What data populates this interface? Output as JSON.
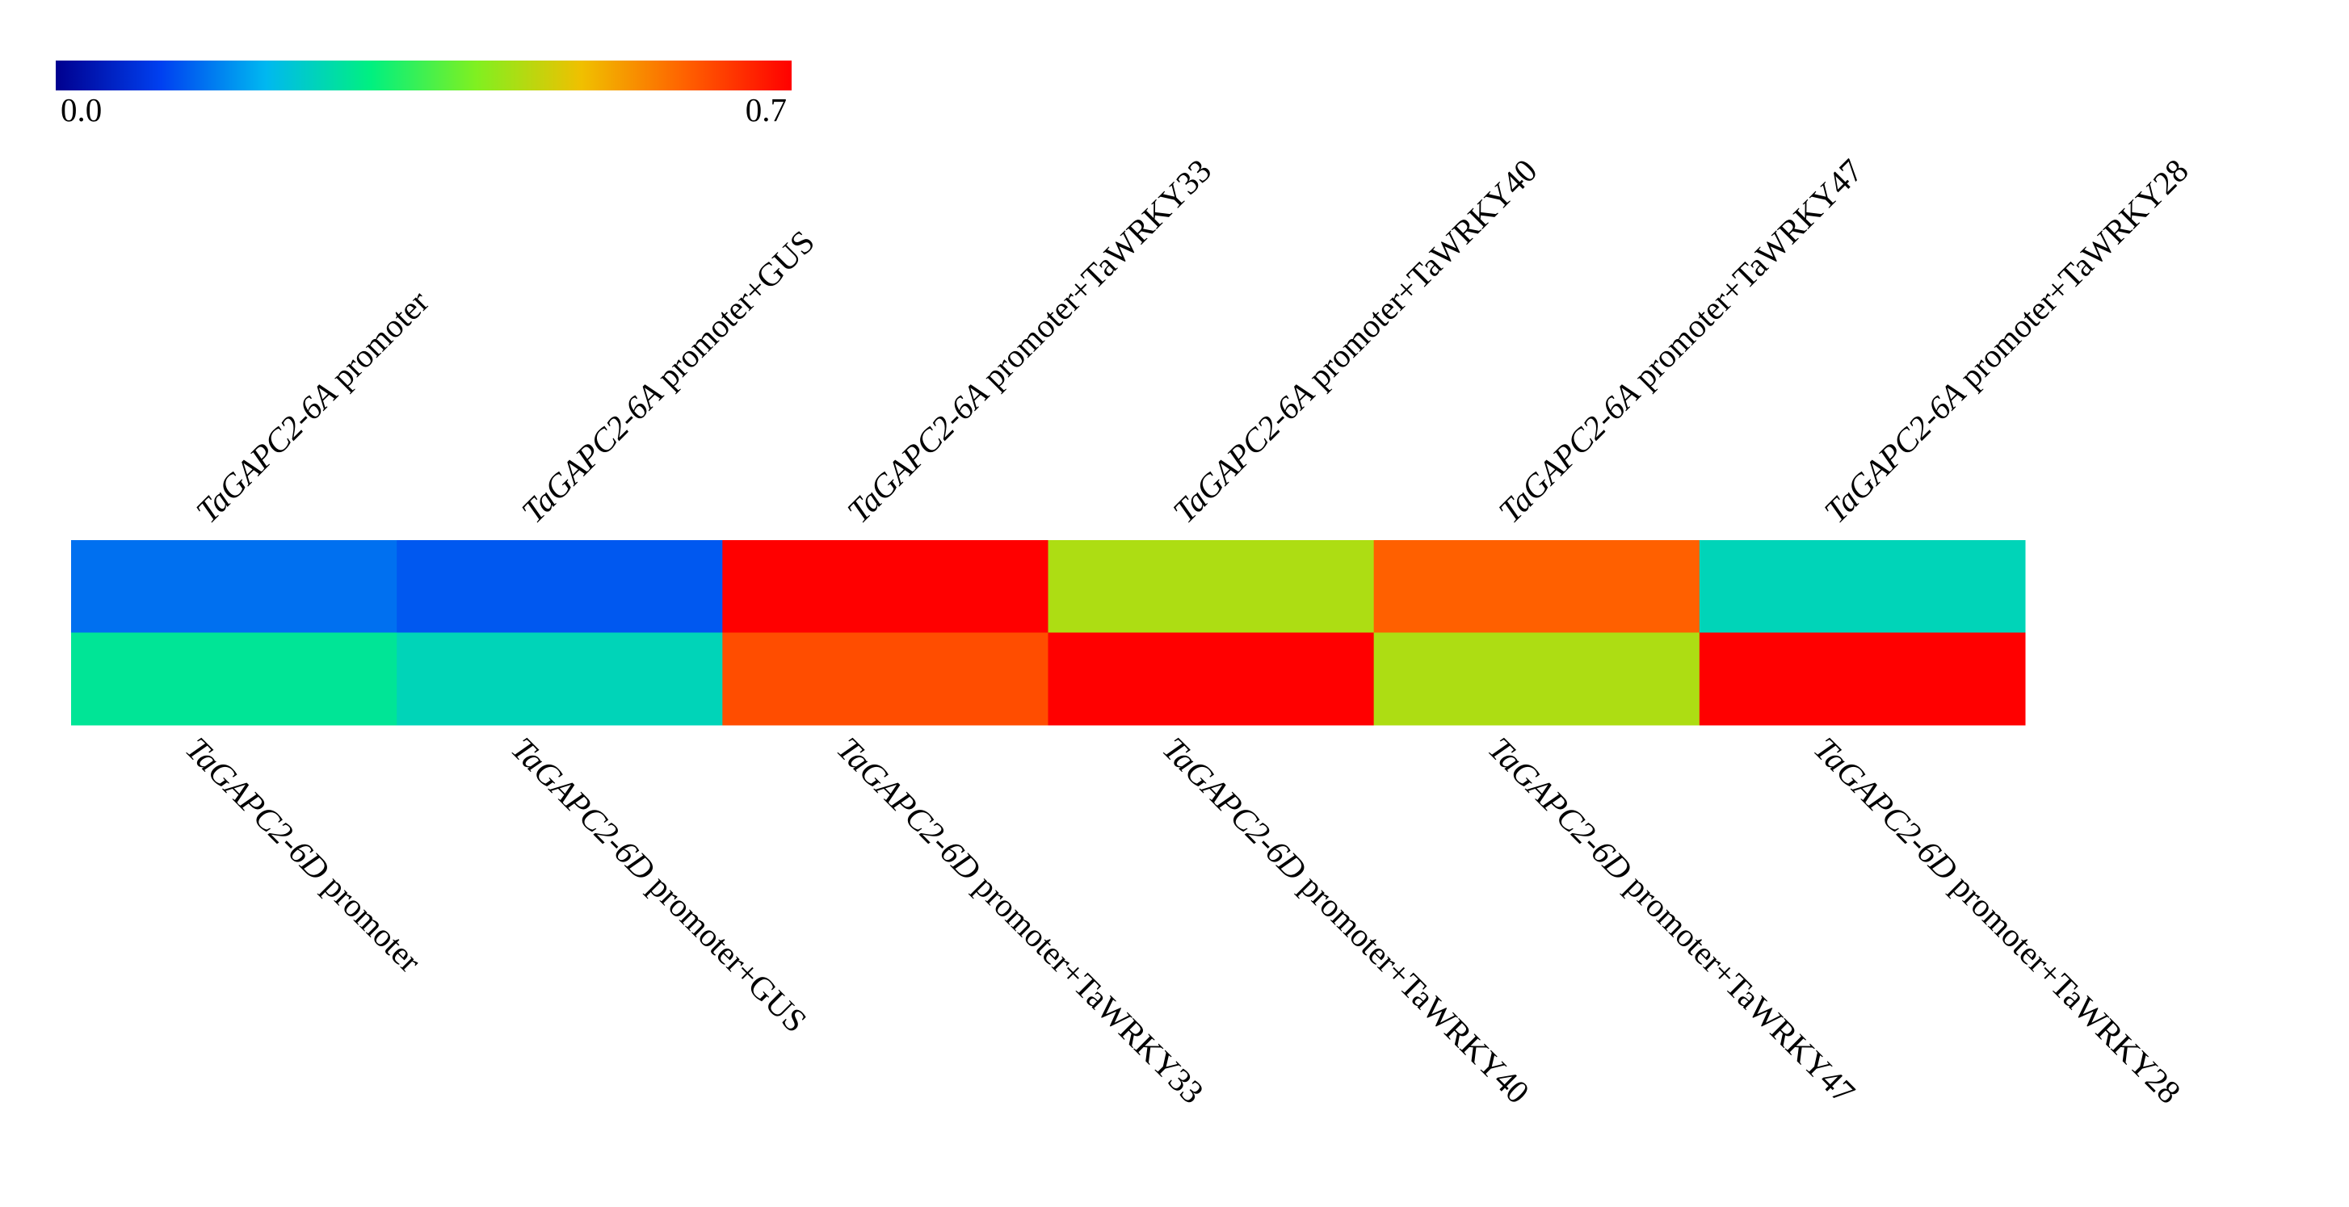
{
  "chart_data": {
    "type": "heatmap",
    "columns": 6,
    "rows": [
      {
        "labels": [
          "TaGAPC2-6A promoter",
          "TaGAPC2-6A promoter+GUS",
          "TaGAPC2-6A promoter+TaWRKY33",
          "TaGAPC2-6A promoter+TaWRKY40",
          "TaGAPC2-6A promoter+TaWRKY47",
          "TaGAPC2-6A promoter+TaWRKY28"
        ],
        "values": [
          0.14,
          0.12,
          0.7,
          0.44,
          0.6,
          0.25
        ]
      },
      {
        "labels": [
          "TaGAPC2-6D promoter",
          "TaGAPC2-6D promoter+GUS",
          "TaGAPC2-6D promoter+TaWRKY33",
          "TaGAPC2-6D promoter+TaWRKY40",
          "TaGAPC2-6D promoter+TaWRKY47",
          "TaGAPC2-6D promoter+TaWRKY28"
        ],
        "values": [
          0.28,
          0.25,
          0.62,
          0.7,
          0.44,
          0.7
        ]
      }
    ],
    "clim": [
      0,
      0.7
    ],
    "cticks": [
      {
        "value": 0,
        "label": "0.0"
      },
      0.7
    ],
    "colormap": [
      "#00008f",
      "#0040f0",
      "#00b8f0",
      "#00f080",
      "#80f020",
      "#f0c000",
      "#ff6000",
      "#ff0000"
    ]
  }
}
